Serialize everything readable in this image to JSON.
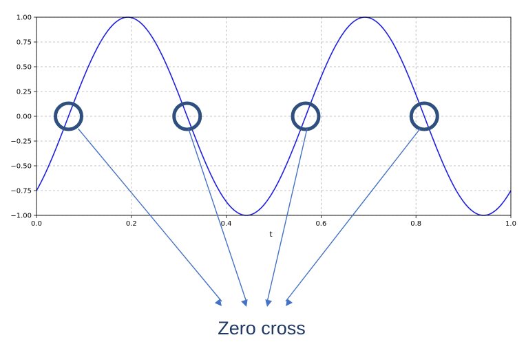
{
  "chart_data": {
    "type": "line",
    "title": "",
    "xlabel": "t",
    "ylabel": "",
    "xlim": [
      0.0,
      1.0
    ],
    "ylim": [
      -1.0,
      1.0
    ],
    "grid": true,
    "legend": "none",
    "x_ticks": [
      "0.0",
      "0.2",
      "0.4",
      "0.6",
      "0.8",
      "1.0"
    ],
    "y_ticks": [
      "1.00",
      "0.75",
      "0.50",
      "0.25",
      "0.00",
      "−0.25",
      "−0.50",
      "−0.75",
      "−1.00"
    ],
    "series": [
      {
        "function": "sin",
        "frequency_hz": 2,
        "amplitude": 1,
        "phase_rad": -0.8481,
        "color": "#1f1fe0",
        "t_range": [
          0.0,
          1.0
        ]
      }
    ],
    "annotations": {
      "zero_crossings_t": [
        0.0675,
        0.3175,
        0.5675,
        0.8175
      ],
      "marker": "circle",
      "marker_color": "#2f4f7f",
      "arrow_color": "#4472c4",
      "label": "Zero cross"
    }
  }
}
